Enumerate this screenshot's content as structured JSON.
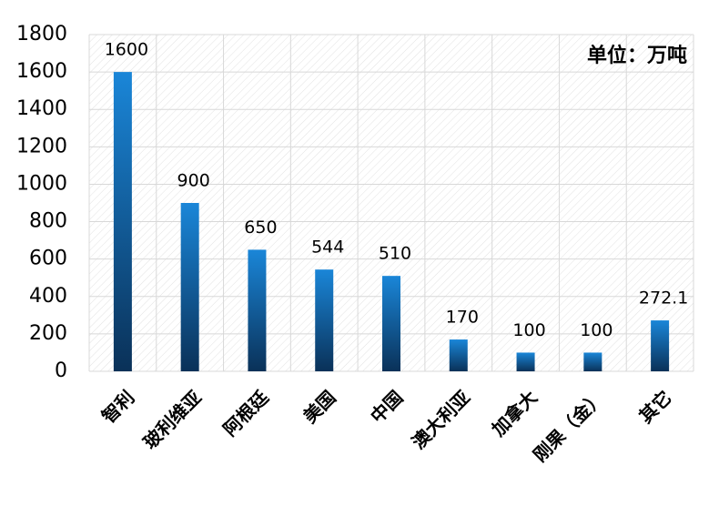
{
  "chart_data": {
    "type": "bar",
    "annotation": "单位：万吨",
    "categories": [
      "智利",
      "玻利维亚",
      "阿根廷",
      "美国",
      "中国",
      "澳大利亚",
      "加拿大",
      "刚果（金）",
      "其它"
    ],
    "values": [
      1600,
      900,
      650,
      544,
      510,
      170,
      100,
      100,
      272.1
    ],
    "color": "#1a86d8",
    "ylim": [
      0,
      1800
    ],
    "yticks": [
      0,
      200,
      400,
      600,
      800,
      1000,
      1200,
      1400,
      1600,
      1800
    ],
    "grid": true
  }
}
